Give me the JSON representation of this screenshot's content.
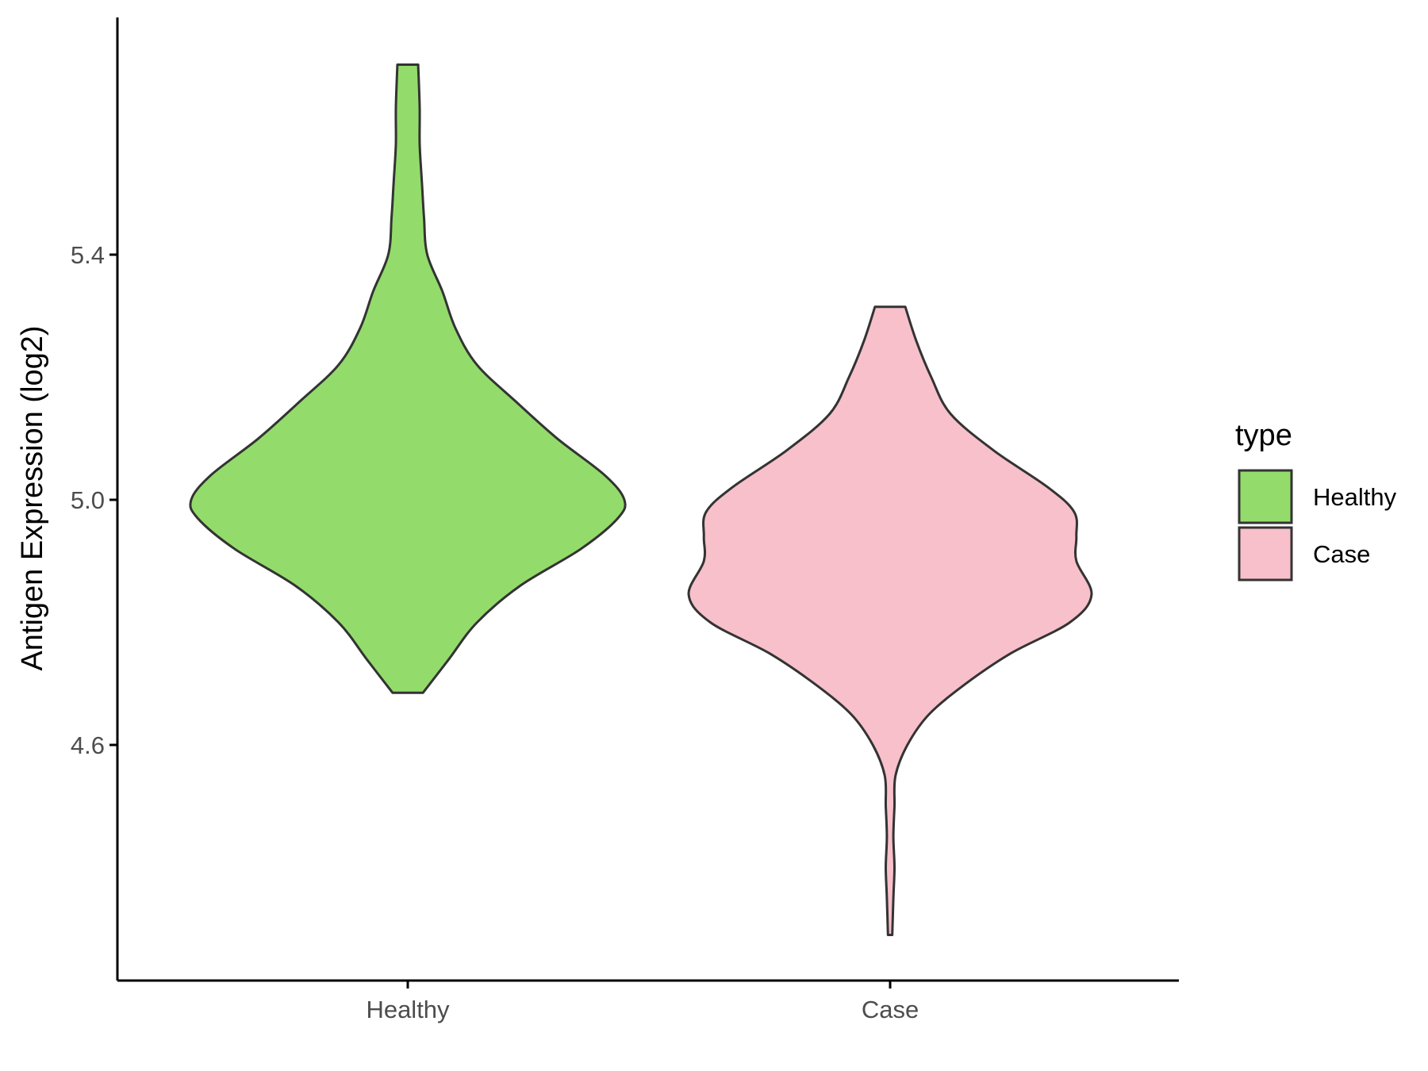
{
  "chart_data": {
    "type": "violin",
    "xlabel": "",
    "ylabel": "Antigen Expression (log2)",
    "categories": [
      "Healthy",
      "Case"
    ],
    "yticks": [
      4.6,
      5.0,
      5.4
    ],
    "ytick_labels": [
      "4.6",
      "5.0",
      "5.4"
    ],
    "ylim": [
      4.22,
      5.79
    ],
    "legend": {
      "title": "type",
      "placement": "right",
      "entries": [
        "Healthy",
        "Case"
      ]
    },
    "colors": {
      "Healthy": "#93dc6b",
      "Case": "#f7c0cb",
      "outline": "#333333",
      "axis": "#000000"
    },
    "series": [
      {
        "name": "Healthy",
        "min": 4.685,
        "max": 5.71,
        "profile": [
          [
            4.685,
            0.07
          ],
          [
            4.74,
            0.19
          ],
          [
            4.8,
            0.32
          ],
          [
            4.86,
            0.52
          ],
          [
            4.92,
            0.8
          ],
          [
            4.97,
            0.97
          ],
          [
            5.0,
            1.0
          ],
          [
            5.04,
            0.91
          ],
          [
            5.1,
            0.69
          ],
          [
            5.16,
            0.5
          ],
          [
            5.22,
            0.32
          ],
          [
            5.28,
            0.22
          ],
          [
            5.34,
            0.16
          ],
          [
            5.4,
            0.09
          ],
          [
            5.46,
            0.075
          ],
          [
            5.52,
            0.065
          ],
          [
            5.58,
            0.055
          ],
          [
            5.64,
            0.055
          ],
          [
            5.71,
            0.048
          ]
        ]
      },
      {
        "name": "Case",
        "min": 4.29,
        "max": 5.315,
        "profile": [
          [
            4.29,
            0.01
          ],
          [
            4.35,
            0.015
          ],
          [
            4.4,
            0.02
          ],
          [
            4.45,
            0.015
          ],
          [
            4.5,
            0.02
          ],
          [
            4.55,
            0.025
          ],
          [
            4.6,
            0.08
          ],
          [
            4.65,
            0.18
          ],
          [
            4.7,
            0.35
          ],
          [
            4.75,
            0.56
          ],
          [
            4.8,
            0.83
          ],
          [
            4.845,
            0.93
          ],
          [
            4.9,
            0.86
          ],
          [
            4.94,
            0.86
          ],
          [
            4.98,
            0.85
          ],
          [
            5.02,
            0.73
          ],
          [
            5.08,
            0.48
          ],
          [
            5.14,
            0.28
          ],
          [
            5.2,
            0.19
          ],
          [
            5.26,
            0.12
          ],
          [
            5.315,
            0.07
          ]
        ]
      }
    ]
  }
}
